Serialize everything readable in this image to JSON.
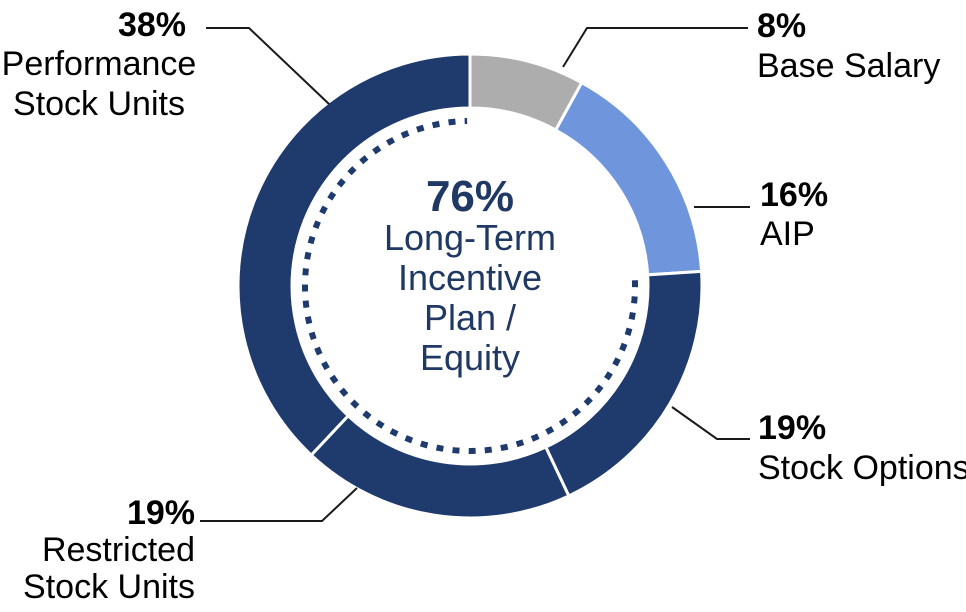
{
  "colors": {
    "navy": "#1f3a6c",
    "light_blue": "#6f96dd",
    "gray": "#adadad",
    "text_navy": "#1f3864",
    "leader_line": "#1a1a1a",
    "background": "#ffffff"
  },
  "chart_data": {
    "type": "pie",
    "subtype": "donut",
    "start_angle_deg": 0,
    "direction": "clockwise",
    "categories": [
      "Base Salary",
      "AIP",
      "Stock Options",
      "Restricted Stock Units",
      "Performance Stock Units"
    ],
    "values": [
      8,
      16,
      19,
      19,
      38
    ],
    "segments": [
      {
        "name": "Base Salary",
        "pct": 8,
        "pct_label": "8%",
        "label_lines": [
          "Base Salary"
        ],
        "color": "gray"
      },
      {
        "name": "AIP",
        "pct": 16,
        "pct_label": "16%",
        "label_lines": [
          "AIP"
        ],
        "color": "light_blue"
      },
      {
        "name": "Stock Options",
        "pct": 19,
        "pct_label": "19%",
        "label_lines": [
          "Stock Options"
        ],
        "color": "navy"
      },
      {
        "name": "Restricted Stock Units",
        "pct": 19,
        "pct_label": "19%",
        "label_lines": [
          "Restricted",
          "Stock Units"
        ],
        "color": "navy"
      },
      {
        "name": "Performance Stock Units",
        "pct": 38,
        "pct_label": "38%",
        "label_lines": [
          "Performance",
          "Stock Units"
        ],
        "color": "navy"
      }
    ],
    "center": {
      "pct": 76,
      "pct_label": "76%",
      "lines": [
        "Long-Term",
        "Incentive",
        "Plan /",
        "Equity"
      ]
    },
    "highlight_arc": {
      "style": "dashed",
      "covers_pct": 76,
      "covers": [
        "Stock Options",
        "Restricted Stock Units",
        "Performance Stock Units"
      ]
    },
    "legend_position": "callouts",
    "grid": false,
    "title": ""
  }
}
